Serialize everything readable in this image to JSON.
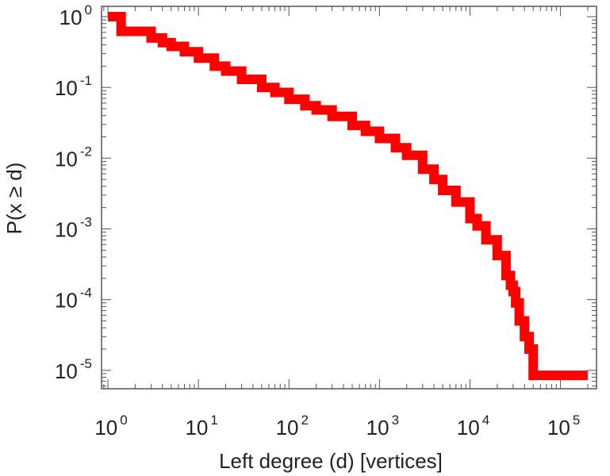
{
  "chart_data": {
    "type": "line",
    "xlabel": "Left degree (d) [vertices]",
    "ylabel": "P(x ≥ d)",
    "x_scale": "log",
    "y_scale": "log",
    "xlim": [
      0.85,
      250000
    ],
    "ylim": [
      5.5e-06,
      1.4
    ],
    "x_ticks": [
      {
        "base": "10",
        "exp": "0",
        "value": 1
      },
      {
        "base": "10",
        "exp": "1",
        "value": 10
      },
      {
        "base": "10",
        "exp": "2",
        "value": 100
      },
      {
        "base": "10",
        "exp": "3",
        "value": 1000
      },
      {
        "base": "10",
        "exp": "4",
        "value": 10000
      },
      {
        "base": "10",
        "exp": "5",
        "value": 100000
      }
    ],
    "y_ticks": [
      {
        "base": "10",
        "exp": "0",
        "value": 1
      },
      {
        "base": "10",
        "exp": "-1",
        "value": 0.1
      },
      {
        "base": "10",
        "exp": "-2",
        "value": 0.01
      },
      {
        "base": "10",
        "exp": "-3",
        "value": 0.001
      },
      {
        "base": "10",
        "exp": "-4",
        "value": 0.0001
      },
      {
        "base": "10",
        "exp": "-5",
        "value": 1e-05
      }
    ],
    "grid": false,
    "series": [
      {
        "color": "#ff0000",
        "x": [
          1,
          1.4,
          2,
          3,
          4,
          5,
          7,
          10,
          15,
          20,
          30,
          50,
          70,
          100,
          150,
          200,
          300,
          500,
          700,
          1000,
          1500,
          2000,
          3000,
          4000,
          5000,
          7000,
          10000,
          12000,
          15000,
          20000,
          25000,
          28000,
          30000,
          32000,
          35000,
          40000,
          45000,
          50000,
          100000,
          200000
        ],
        "y": [
          1,
          0.62,
          0.62,
          0.5,
          0.43,
          0.38,
          0.32,
          0.26,
          0.2,
          0.17,
          0.13,
          0.1,
          0.085,
          0.068,
          0.055,
          0.048,
          0.039,
          0.029,
          0.024,
          0.019,
          0.014,
          0.011,
          0.007,
          0.005,
          0.0035,
          0.0024,
          0.0014,
          0.0011,
          0.0007,
          0.00042,
          0.00022,
          0.00016,
          0.00013,
          9e-05,
          5e-05,
          3e-05,
          2e-05,
          8.5e-06,
          8.5e-06,
          8.5e-06
        ]
      }
    ]
  }
}
